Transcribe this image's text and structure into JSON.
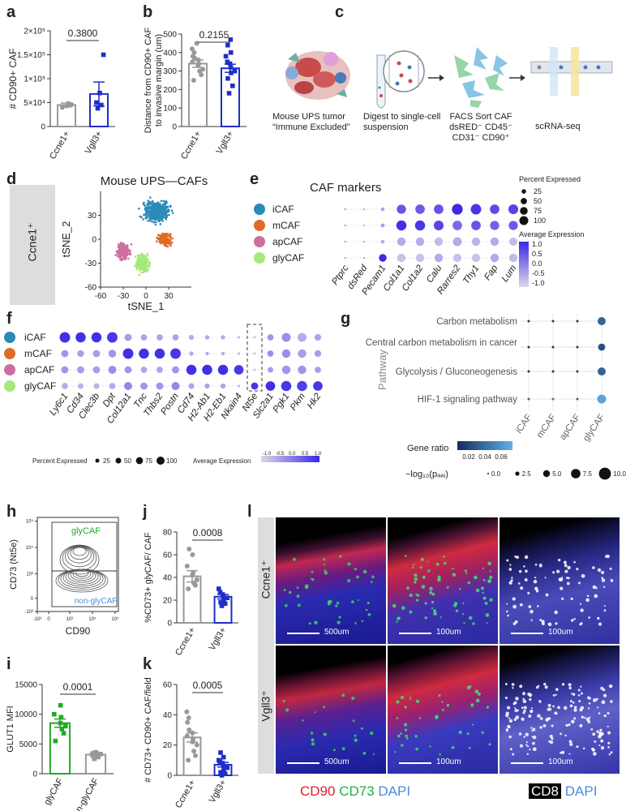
{
  "panel_labels": {
    "a": "a",
    "b": "b",
    "c": "c",
    "d": "d",
    "e": "e",
    "f": "f",
    "g": "g",
    "h": "h",
    "i": "i",
    "j": "j",
    "k": "k",
    "l": "l"
  },
  "chart_data": [
    {
      "id": "a",
      "type": "bar",
      "categories": [
        "Ccne1+",
        "Vgll3+"
      ],
      "values": [
        45000,
        68000
      ],
      "errors": [
        4000,
        25000
      ],
      "points": [
        [
          40000,
          45000,
          48000,
          46000,
          43000
        ],
        [
          38000,
          45000,
          50000,
          70000,
          150000
        ]
      ],
      "ylabel": "# CD90+ CAF",
      "ylim": [
        0,
        200000
      ],
      "yticks": [
        "0",
        "5×10⁴",
        "1×10⁵",
        "1.5×10⁵",
        "2×10⁵"
      ],
      "pvalue": "0.3800",
      "colors": [
        "#999999",
        "#1f2ec8"
      ]
    },
    {
      "id": "b",
      "type": "bar",
      "categories": [
        "Ccne1+",
        "Vgll3+"
      ],
      "values": [
        340,
        315
      ],
      "errors": [
        20,
        22
      ],
      "points": [
        [
          250,
          280,
          300,
          310,
          330,
          340,
          350,
          360,
          370,
          380,
          400,
          420,
          450
        ],
        [
          180,
          220,
          260,
          290,
          300,
          320,
          340,
          350,
          380,
          400,
          440,
          470
        ]
      ],
      "ylabel": "Distance from CD90+ CAF to invasive margin (um)",
      "ylim": [
        0,
        500
      ],
      "yticks": [
        "0",
        "100",
        "200",
        "300",
        "400",
        "500"
      ],
      "pvalue": "0.2155",
      "colors": [
        "#999999",
        "#1f2ec8"
      ]
    },
    {
      "id": "d",
      "type": "scatter",
      "title": "Mouse UPS—CAFs",
      "xlabel": "tSNE_1",
      "ylabel": "tSNE_2",
      "xlim": [
        -60,
        60
      ],
      "ylim": [
        -60,
        60
      ],
      "xticks": [
        "-60",
        "-30",
        "0",
        "30"
      ],
      "yticks": [
        "-60",
        "-30",
        "0",
        "30"
      ],
      "clusters": [
        {
          "name": "iCAF",
          "color": "#2a8ab8",
          "cx": 15,
          "cy": 35,
          "sx": 18,
          "sy": 12,
          "n": 420
        },
        {
          "name": "mCAF",
          "color": "#e06a28",
          "cx": 25,
          "cy": 0,
          "sx": 9,
          "sy": 8,
          "n": 160
        },
        {
          "name": "apCAF",
          "color": "#cc6fa0",
          "cx": -30,
          "cy": -15,
          "sx": 8,
          "sy": 10,
          "n": 200
        },
        {
          "name": "glyCAF",
          "color": "#a6e87a",
          "cx": -5,
          "cy": -30,
          "sx": 9,
          "sy": 11,
          "n": 260
        }
      ],
      "side_label": "Ccne1⁺"
    },
    {
      "id": "e",
      "type": "dotplot",
      "title": "CAF markers",
      "rows": [
        "iCAF",
        "mCAF",
        "apCAF",
        "glyCAF"
      ],
      "row_colors": [
        "#2a8ab8",
        "#e06a28",
        "#cc6fa0",
        "#a6e87a"
      ],
      "cols": [
        "Ptprc",
        "dsRed",
        "Pecam1",
        "Col1a1",
        "Col1a2",
        "Calu",
        "Rarres2",
        "Thy1",
        "Fap",
        "Lum"
      ],
      "size": [
        [
          2,
          2,
          10,
          65,
          70,
          70,
          90,
          85,
          70,
          75
        ],
        [
          2,
          2,
          12,
          80,
          80,
          75,
          70,
          70,
          65,
          65
        ],
        [
          2,
          2,
          10,
          55,
          55,
          55,
          60,
          55,
          55,
          50
        ],
        [
          2,
          2,
          45,
          55,
          55,
          55,
          55,
          55,
          55,
          55
        ]
      ],
      "expr": [
        [
          0,
          0,
          -0.5,
          0.6,
          0.5,
          0.6,
          1.2,
          1.0,
          0.7,
          0.8
        ],
        [
          0,
          0,
          -0.4,
          1.1,
          1.0,
          0.8,
          0.3,
          0.6,
          0.4,
          0.5
        ],
        [
          0,
          0,
          -0.6,
          -0.6,
          -0.6,
          -0.8,
          -0.6,
          -0.7,
          -0.6,
          -0.8
        ],
        [
          0,
          0,
          1.2,
          -0.9,
          -0.9,
          -0.6,
          -0.9,
          -0.9,
          -0.6,
          -0.8
        ]
      ],
      "legend_size_title": "Percent Expressed",
      "legend_size_labels": [
        "25",
        "50",
        "75",
        "100"
      ],
      "legend_color_title": "Average Expression",
      "legend_color_labels": [
        "1.0",
        "0.5",
        "0.0",
        "-0.5",
        "-1.0"
      ]
    },
    {
      "id": "f",
      "type": "dotplot",
      "rows": [
        "iCAF",
        "mCAF",
        "apCAF",
        "glyCAF"
      ],
      "row_colors": [
        "#2a8ab8",
        "#e06a28",
        "#cc6fa0",
        "#a6e87a"
      ],
      "cols": [
        "Ly6c1",
        "Cd34",
        "Clec3b",
        "Dpt",
        "Col12a1",
        "Tnc",
        "Thbs2",
        "Postn",
        "Cd74",
        "H2-Ab1",
        "H2-Eb1",
        "Nkain4",
        "Nt5e",
        "Slc2a1",
        "Pgk1",
        "Pkm",
        "Hk2"
      ],
      "size": [
        [
          85,
          80,
          80,
          85,
          40,
          30,
          30,
          30,
          20,
          15,
          15,
          5,
          5,
          30,
          60,
          60,
          35
        ],
        [
          40,
          35,
          40,
          45,
          85,
          80,
          80,
          85,
          15,
          10,
          10,
          5,
          5,
          30,
          55,
          55,
          35
        ],
        [
          40,
          40,
          40,
          50,
          40,
          30,
          30,
          40,
          80,
          80,
          80,
          70,
          5,
          25,
          55,
          55,
          30
        ],
        [
          30,
          25,
          25,
          30,
          50,
          40,
          40,
          50,
          25,
          20,
          20,
          5,
          40,
          70,
          80,
          80,
          70
        ]
      ],
      "expr": [
        [
          1.1,
          1.1,
          1.1,
          1.0,
          -0.4,
          -0.5,
          -0.5,
          -0.5,
          -0.6,
          -0.6,
          -0.6,
          -0.8,
          -1.0,
          -0.3,
          -0.2,
          -0.6,
          -0.5
        ],
        [
          -0.3,
          -0.4,
          -0.4,
          -0.3,
          1.1,
          1.1,
          1.1,
          1.0,
          -0.6,
          -0.6,
          -0.6,
          -0.8,
          -1.0,
          -0.2,
          -0.2,
          -0.4,
          -0.4
        ],
        [
          -0.3,
          -0.4,
          -0.4,
          -0.2,
          -0.3,
          -0.5,
          -0.5,
          -0.3,
          1.1,
          1.1,
          1.1,
          1.0,
          -1.0,
          -0.4,
          -0.3,
          -0.3,
          -0.4
        ],
        [
          -0.6,
          -0.7,
          -0.7,
          -0.6,
          -0.1,
          -0.3,
          -0.3,
          -0.1,
          -0.5,
          -0.5,
          -0.5,
          -0.8,
          1.0,
          1.1,
          1.0,
          0.9,
          1.0
        ]
      ],
      "highlight_col": "Nt5e",
      "legend_size_title": "Percent Expressed",
      "legend_size_labels": [
        "25",
        "50",
        "75",
        "100"
      ],
      "legend_color_title": "Average Expression",
      "legend_color_labels": [
        "-1.0",
        "-0.5",
        "0.0",
        "0.5",
        "1.0"
      ]
    },
    {
      "id": "g",
      "type": "dotplot",
      "ylabel": "Pathway",
      "rows": [
        "Carbon metabolism",
        "Central carbon metabolism in cancer",
        "Glycolysis / Gluconeogenesis",
        "HIF-1 signaling pathway"
      ],
      "cols": [
        "iCAF",
        "mCAF",
        "apCAF",
        "glyCAF"
      ],
      "size": [
        [
          1.5,
          1.5,
          1.5,
          9
        ],
        [
          1.5,
          1.5,
          1.5,
          8
        ],
        [
          1.5,
          1.5,
          1.5,
          9
        ],
        [
          2,
          1.5,
          1.5,
          10
        ]
      ],
      "ratio": [
        [
          0.02,
          0.02,
          0.02,
          0.04
        ],
        [
          0.02,
          0.02,
          0.02,
          0.03
        ],
        [
          0.02,
          0.02,
          0.02,
          0.04
        ],
        [
          0.04,
          0.05,
          0.04,
          0.07
        ]
      ],
      "legend_color_title": "Gene ratio",
      "legend_color_labels": [
        "0.02",
        "0.04",
        "0.06"
      ],
      "legend_size_title": "−log₁₀(pₐₔⱼ)",
      "legend_size_labels": [
        "0.0",
        "2.5",
        "5.0",
        "7.5",
        "10.0"
      ]
    },
    {
      "id": "h",
      "type": "contour",
      "xlabel": "CD90",
      "ylabel": "CD73 (Nt5e)",
      "xticks": [
        "-10³",
        "0",
        "10³",
        "10⁴",
        "10⁵"
      ],
      "yticks": [
        "-10³",
        "0",
        "10³",
        "10⁴",
        "10⁵"
      ],
      "gates": [
        {
          "name": "glyCAF",
          "color": "#22aa22"
        },
        {
          "name": "non-glyCAF",
          "color": "#4a90e2"
        }
      ]
    },
    {
      "id": "i",
      "type": "bar",
      "categories": [
        "glyCAF",
        "non-glyCAF"
      ],
      "values": [
        8500,
        3200
      ],
      "errors": [
        700,
        200
      ],
      "points": [
        [
          5500,
          6800,
          7500,
          8000,
          8500,
          9500,
          10000,
          11500
        ],
        [
          2500,
          2800,
          3000,
          3200,
          3300,
          3500,
          3600,
          3400
        ]
      ],
      "ylabel": "GLUT1 MFI",
      "ylim": [
        0,
        15000
      ],
      "yticks": [
        "0",
        "5000",
        "10000",
        "15000"
      ],
      "pvalue": "0.0001",
      "colors": [
        "#22aa22",
        "#999999"
      ]
    },
    {
      "id": "j",
      "type": "bar",
      "categories": [
        "Ccne1+",
        "Vgll3+"
      ],
      "values": [
        41,
        23
      ],
      "errors": [
        5,
        2
      ],
      "points": [
        [
          30,
          33,
          35,
          38,
          42,
          44,
          50,
          60,
          65
        ],
        [
          15,
          17,
          18,
          20,
          22,
          23,
          25,
          27,
          30
        ]
      ],
      "ylabel": "%CD73+ glyCAF/ CAF",
      "ylim": [
        0,
        80
      ],
      "yticks": [
        "0",
        "20",
        "40",
        "60",
        "80"
      ],
      "pvalue": "0.0008",
      "colors": [
        "#999999",
        "#1f2ec8"
      ]
    },
    {
      "id": "k",
      "type": "bar",
      "categories": [
        "Ccne1+",
        "Vgll3+"
      ],
      "values": [
        25,
        7
      ],
      "errors": [
        3,
        1.5
      ],
      "points": [
        [
          10,
          13,
          16,
          20,
          22,
          24,
          26,
          28,
          30,
          35,
          38,
          42
        ],
        [
          0,
          1,
          2,
          3,
          5,
          6,
          8,
          9,
          10,
          12,
          15
        ]
      ],
      "ylabel": "# CD73+ CD90+ CAF/field",
      "ylim": [
        0,
        60
      ],
      "yticks": [
        "0",
        "20",
        "40",
        "60"
      ],
      "pvalue": "0.0005",
      "colors": [
        "#999999",
        "#1f2ec8"
      ]
    }
  ],
  "panel_c": {
    "step1": "Mouse UPS tumor “Immune Excluded”",
    "step2": "Digest to single-cell suspension",
    "step3_line1": "FACS Sort CAF",
    "step3_line2": "dsRED⁻ CD45⁻",
    "step3_line3": "CD31⁻ CD90⁺",
    "step4": "scRNA-seq"
  },
  "panel_l": {
    "row1_label": "Ccne1⁺",
    "row2_label": "Vgll3⁺",
    "scale_labels": [
      "500um",
      "100um",
      "100um",
      "500um",
      "100um",
      "100um"
    ],
    "legend_cd90": "CD90",
    "legend_cd73": "CD73",
    "legend_dapi1": "DAPI",
    "legend_cd8": "CD8",
    "legend_dapi2": "DAPI"
  }
}
